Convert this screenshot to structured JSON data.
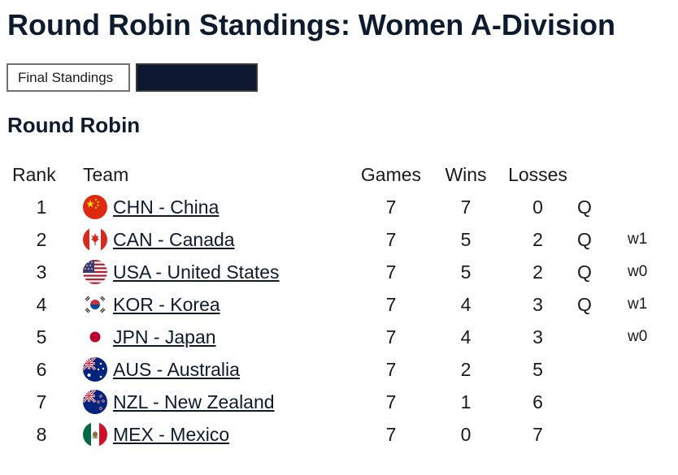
{
  "page": {
    "title": "Round Robin Standings: Women A-Division"
  },
  "tabs": {
    "final_label": "Final Standings",
    "second_label": ""
  },
  "section": {
    "title": "Round Robin"
  },
  "table": {
    "headers": {
      "rank": "Rank",
      "team": "Team",
      "games": "Games",
      "wins": "Wins",
      "losses": "Losses"
    },
    "rows": [
      {
        "rank": "1",
        "flag": "china-flag-icon",
        "team": "CHN - China",
        "games": "7",
        "wins": "7",
        "losses": "0",
        "q": "Q",
        "tiebreak": ""
      },
      {
        "rank": "2",
        "flag": "canada-flag-icon",
        "team": "CAN - Canada",
        "games": "7",
        "wins": "5",
        "losses": "2",
        "q": "Q",
        "tiebreak": "w1"
      },
      {
        "rank": "3",
        "flag": "usa-flag-icon",
        "team": "USA - United States",
        "games": "7",
        "wins": "5",
        "losses": "2",
        "q": "Q",
        "tiebreak": "w0"
      },
      {
        "rank": "4",
        "flag": "korea-flag-icon",
        "team": "KOR - Korea",
        "games": "7",
        "wins": "4",
        "losses": "3",
        "q": "Q",
        "tiebreak": "w1"
      },
      {
        "rank": "5",
        "flag": "japan-flag-icon",
        "team": "JPN - Japan",
        "games": "7",
        "wins": "4",
        "losses": "3",
        "q": "",
        "tiebreak": "w0"
      },
      {
        "rank": "6",
        "flag": "australia-flag-icon",
        "team": "AUS - Australia",
        "games": "7",
        "wins": "2",
        "losses": "5",
        "q": "",
        "tiebreak": ""
      },
      {
        "rank": "7",
        "flag": "new-zealand-flag-icon",
        "team": "NZL - New Zealand",
        "games": "7",
        "wins": "1",
        "losses": "6",
        "q": "",
        "tiebreak": ""
      },
      {
        "rank": "8",
        "flag": "mexico-flag-icon",
        "team": "MEX - Mexico",
        "games": "7",
        "wins": "0",
        "losses": "7",
        "q": "",
        "tiebreak": ""
      }
    ]
  },
  "colors": {
    "text": "#0d1b2e",
    "dark_tab_bg": "#0e1730",
    "link": "#0d1b2e"
  }
}
